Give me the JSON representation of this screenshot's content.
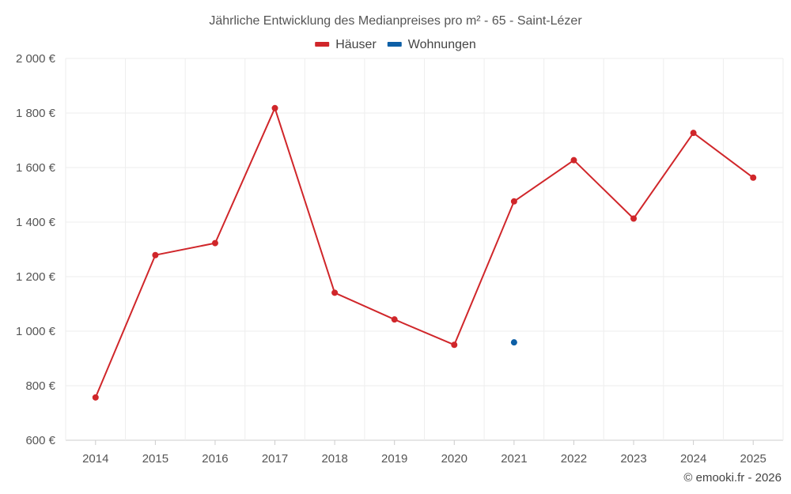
{
  "chart_data": {
    "type": "line",
    "title": "Jährliche Entwicklung des Medianpreises pro m² - 65 - Saint-Lézer",
    "categories": [
      "2014",
      "2015",
      "2016",
      "2017",
      "2018",
      "2019",
      "2020",
      "2021",
      "2022",
      "2023",
      "2024",
      "2025"
    ],
    "series": [
      {
        "name": "Häuser",
        "color": "#d0262a",
        "values": [
          757,
          1279,
          1323,
          1818,
          1141,
          1043,
          950,
          1476,
          1627,
          1413,
          1727,
          1563
        ]
      },
      {
        "name": "Wohnungen",
        "color": "#0d5fa6",
        "values": [
          null,
          null,
          null,
          null,
          null,
          null,
          null,
          959,
          null,
          null,
          null,
          null
        ]
      }
    ],
    "ylim": [
      600,
      2000
    ],
    "yticks": [
      600,
      800,
      1000,
      1200,
      1400,
      1600,
      1800,
      2000
    ],
    "ytick_labels": [
      "600 €",
      "800 €",
      "1 000 €",
      "1 200 €",
      "1 400 €",
      "1 600 €",
      "1 800 €",
      "2 000 €"
    ],
    "xlabel": "",
    "ylabel": "",
    "grid": true,
    "legend_position": "top-center"
  },
  "credit": "© emooki.fr - 2026"
}
